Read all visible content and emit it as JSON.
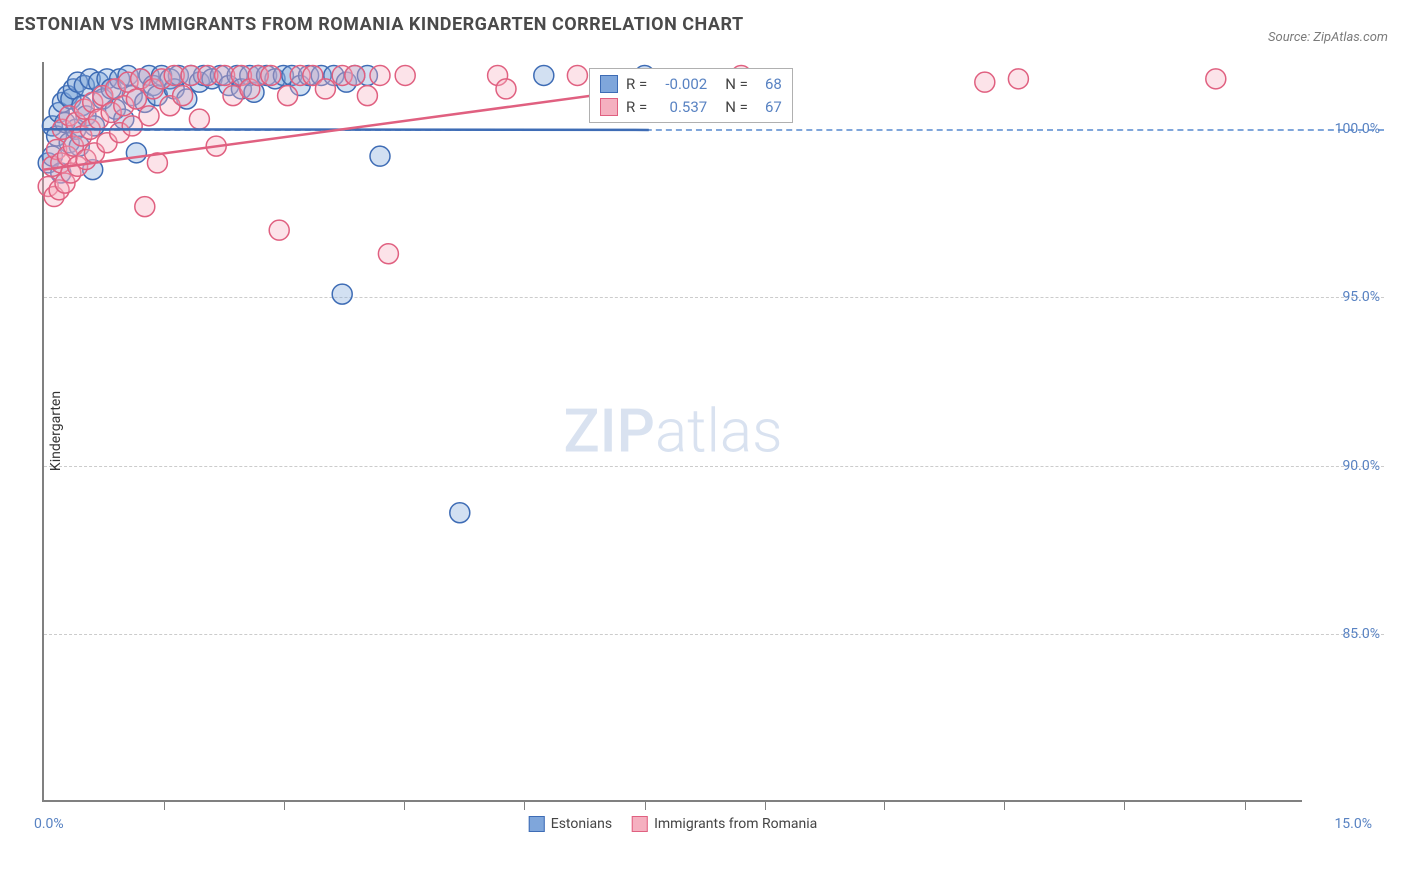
{
  "title": "ESTONIAN VS IMMIGRANTS FROM ROMANIA KINDERGARTEN CORRELATION CHART",
  "source": "Source: ZipAtlas.com",
  "watermark": {
    "bold": "ZIP",
    "light": "atlas"
  },
  "chart": {
    "type": "scatter",
    "y_label": "Kindergarten",
    "xlim": [
      0.0,
      15.0
    ],
    "ylim": [
      80.0,
      102.0
    ],
    "x_tick_positions": [
      1.43,
      2.86,
      4.29,
      5.72,
      7.15,
      8.58,
      10.0,
      11.43,
      12.86,
      14.3
    ],
    "x_start_label": "0.0%",
    "x_end_label": "15.0%",
    "y_grid": [
      {
        "value": 100.0,
        "label": "100.0%",
        "ref": true
      },
      {
        "value": 95.0,
        "label": "95.0%",
        "ref": false
      },
      {
        "value": 90.0,
        "label": "90.0%",
        "ref": false
      },
      {
        "value": 85.0,
        "label": "85.0%",
        "ref": false
      }
    ],
    "background_color": "#ffffff",
    "grid_color": "#cccccc",
    "ref_line_color": "#7fa6db",
    "axis_color": "#808080",
    "marker_radius": 10,
    "marker_opacity": 0.35,
    "series": [
      {
        "name": "Estonians",
        "color_fill": "#7fa6db",
        "color_stroke": "#3e6cb5",
        "r": -0.002,
        "n": 68,
        "trend": {
          "x1": 0.0,
          "y1": 100.0,
          "x2": 7.2,
          "y2": 99.98
        },
        "points": [
          [
            0.05,
            99.0
          ],
          [
            0.1,
            99.2
          ],
          [
            0.1,
            100.1
          ],
          [
            0.15,
            99.8
          ],
          [
            0.18,
            100.5
          ],
          [
            0.2,
            98.7
          ],
          [
            0.22,
            100.8
          ],
          [
            0.25,
            100.2
          ],
          [
            0.28,
            101.0
          ],
          [
            0.3,
            99.6
          ],
          [
            0.32,
            100.9
          ],
          [
            0.35,
            101.2
          ],
          [
            0.38,
            100.0
          ],
          [
            0.4,
            101.4
          ],
          [
            0.42,
            99.5
          ],
          [
            0.45,
            100.7
          ],
          [
            0.48,
            101.3
          ],
          [
            0.5,
            100.4
          ],
          [
            0.55,
            101.5
          ],
          [
            0.58,
            98.8
          ],
          [
            0.6,
            100.1
          ],
          [
            0.65,
            101.4
          ],
          [
            0.7,
            100.9
          ],
          [
            0.75,
            101.5
          ],
          [
            0.8,
            101.2
          ],
          [
            0.85,
            100.6
          ],
          [
            0.9,
            101.5
          ],
          [
            0.95,
            100.3
          ],
          [
            1.0,
            101.6
          ],
          [
            1.05,
            101.0
          ],
          [
            1.1,
            99.3
          ],
          [
            1.15,
            101.5
          ],
          [
            1.2,
            100.8
          ],
          [
            1.25,
            101.6
          ],
          [
            1.3,
            101.3
          ],
          [
            1.35,
            101.0
          ],
          [
            1.4,
            101.6
          ],
          [
            1.5,
            101.5
          ],
          [
            1.55,
            101.2
          ],
          [
            1.6,
            101.6
          ],
          [
            1.7,
            100.9
          ],
          [
            1.75,
            101.6
          ],
          [
            1.85,
            101.4
          ],
          [
            1.9,
            101.6
          ],
          [
            2.0,
            101.5
          ],
          [
            2.1,
            101.6
          ],
          [
            2.2,
            101.3
          ],
          [
            2.3,
            101.6
          ],
          [
            2.35,
            101.2
          ],
          [
            2.45,
            101.6
          ],
          [
            2.5,
            101.1
          ],
          [
            2.55,
            101.6
          ],
          [
            2.65,
            101.6
          ],
          [
            2.75,
            101.5
          ],
          [
            2.85,
            101.6
          ],
          [
            2.95,
            101.6
          ],
          [
            3.05,
            101.3
          ],
          [
            3.15,
            101.6
          ],
          [
            3.3,
            101.6
          ],
          [
            3.45,
            101.6
          ],
          [
            3.6,
            101.4
          ],
          [
            3.7,
            101.6
          ],
          [
            3.85,
            101.6
          ],
          [
            3.55,
            95.1
          ],
          [
            4.0,
            99.2
          ],
          [
            4.95,
            88.6
          ],
          [
            5.95,
            101.6
          ],
          [
            7.15,
            101.6
          ]
        ]
      },
      {
        "name": "Immigrants from Romania",
        "color_fill": "#f5b0c0",
        "color_stroke": "#e06080",
        "r": 0.537,
        "n": 67,
        "trend": {
          "x1": 0.0,
          "y1": 98.8,
          "x2": 8.3,
          "y2": 101.6
        },
        "points": [
          [
            0.05,
            98.3
          ],
          [
            0.1,
            98.9
          ],
          [
            0.12,
            98.0
          ],
          [
            0.15,
            99.4
          ],
          [
            0.18,
            98.2
          ],
          [
            0.2,
            99.0
          ],
          [
            0.22,
            100.0
          ],
          [
            0.25,
            98.4
          ],
          [
            0.28,
            99.2
          ],
          [
            0.3,
            100.4
          ],
          [
            0.32,
            98.7
          ],
          [
            0.35,
            99.5
          ],
          [
            0.38,
            100.2
          ],
          [
            0.4,
            98.9
          ],
          [
            0.45,
            99.8
          ],
          [
            0.48,
            100.6
          ],
          [
            0.5,
            99.1
          ],
          [
            0.55,
            100.0
          ],
          [
            0.58,
            100.8
          ],
          [
            0.6,
            99.3
          ],
          [
            0.65,
            100.3
          ],
          [
            0.7,
            101.0
          ],
          [
            0.75,
            99.6
          ],
          [
            0.8,
            100.5
          ],
          [
            0.85,
            101.2
          ],
          [
            0.9,
            99.9
          ],
          [
            0.95,
            100.7
          ],
          [
            1.0,
            101.4
          ],
          [
            1.05,
            100.1
          ],
          [
            1.1,
            100.9
          ],
          [
            1.15,
            101.5
          ],
          [
            1.2,
            97.7
          ],
          [
            1.25,
            100.4
          ],
          [
            1.3,
            101.2
          ],
          [
            1.35,
            99.0
          ],
          [
            1.4,
            101.5
          ],
          [
            1.5,
            100.7
          ],
          [
            1.55,
            101.6
          ],
          [
            1.65,
            101.0
          ],
          [
            1.75,
            101.6
          ],
          [
            1.85,
            100.3
          ],
          [
            1.95,
            101.6
          ],
          [
            2.05,
            99.5
          ],
          [
            2.15,
            101.6
          ],
          [
            2.25,
            101.0
          ],
          [
            2.35,
            101.6
          ],
          [
            2.45,
            101.2
          ],
          [
            2.55,
            101.6
          ],
          [
            2.7,
            101.6
          ],
          [
            2.8,
            97.0
          ],
          [
            2.9,
            101.0
          ],
          [
            3.05,
            101.6
          ],
          [
            3.2,
            101.6
          ],
          [
            3.35,
            101.2
          ],
          [
            3.55,
            101.6
          ],
          [
            3.7,
            101.6
          ],
          [
            3.85,
            101.0
          ],
          [
            4.0,
            101.6
          ],
          [
            4.1,
            96.3
          ],
          [
            4.3,
            101.6
          ],
          [
            5.4,
            101.6
          ],
          [
            5.5,
            101.2
          ],
          [
            6.35,
            101.6
          ],
          [
            8.3,
            101.6
          ],
          [
            11.2,
            101.4
          ],
          [
            11.6,
            101.5
          ],
          [
            13.95,
            101.5
          ]
        ]
      }
    ],
    "legend": [
      {
        "label": "Estonians",
        "fill": "#7fa6db",
        "stroke": "#3e6cb5"
      },
      {
        "label": "Immigrants from Romania",
        "fill": "#f5b0c0",
        "stroke": "#e06080"
      }
    ],
    "stats_box": {
      "rows": [
        {
          "fill": "#7fa6db",
          "stroke": "#3e6cb5",
          "r_label": "R =",
          "r_val": "-0.002",
          "n_label": "N =",
          "n_val": "68"
        },
        {
          "fill": "#f5b0c0",
          "stroke": "#e06080",
          "r_label": "R =",
          "r_val": "0.537",
          "n_label": "N =",
          "n_val": "67"
        }
      ]
    }
  }
}
